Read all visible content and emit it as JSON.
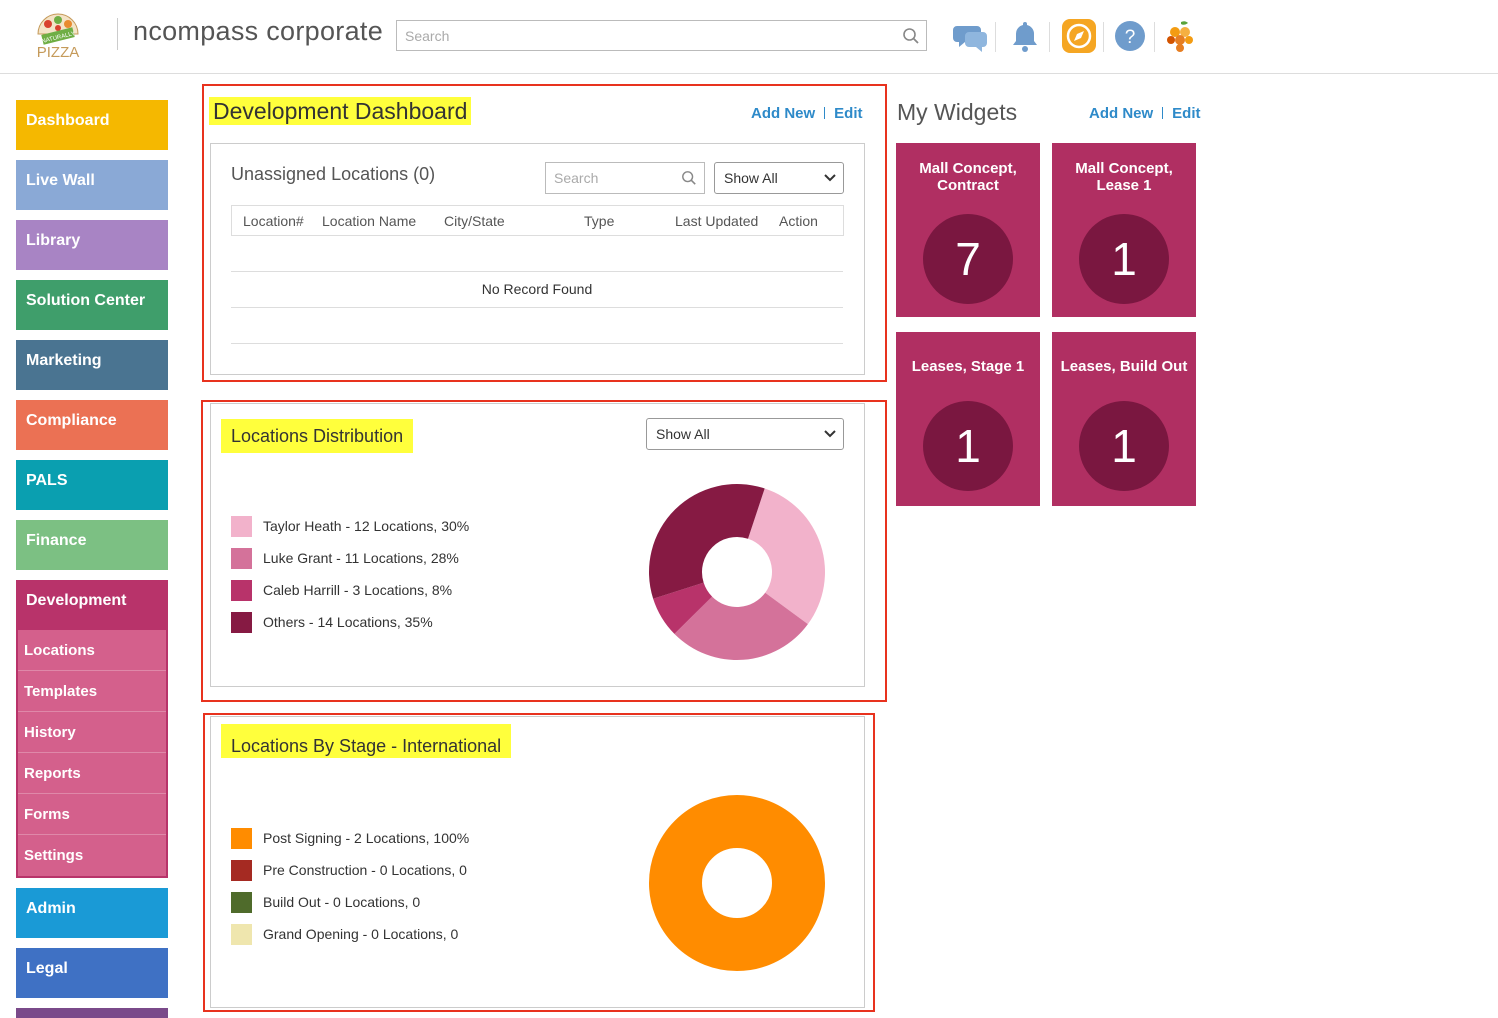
{
  "header": {
    "app_title": "ncompass corporate",
    "search_placeholder": "Search",
    "logo_text_top": "NATURALLY",
    "logo_text_bottom": "PIZZA",
    "icons": [
      "chat-icon",
      "bell-icon",
      "compass-icon",
      "help-icon",
      "fruit-icon"
    ],
    "help_glyph": "?"
  },
  "sidebar": {
    "items": [
      {
        "label": "Dashboard",
        "color": "#f5b800"
      },
      {
        "label": "Live Wall",
        "color": "#8aa9d6"
      },
      {
        "label": "Library",
        "color": "#a884c4"
      },
      {
        "label": "Solution Center",
        "color": "#3f9e6b"
      },
      {
        "label": "Marketing",
        "color": "#4a7491"
      },
      {
        "label": "Compliance",
        "color": "#eb7154"
      },
      {
        "label": "PALS",
        "color": "#0a9fb0"
      },
      {
        "label": "Finance",
        "color": "#7cc083"
      },
      {
        "label": "Development",
        "color": "#b8336a"
      },
      {
        "label": "Admin",
        "color": "#1a9ad6"
      },
      {
        "label": "Legal",
        "color": "#3f71c4"
      }
    ],
    "sub_items": [
      "Locations",
      "Templates",
      "History",
      "Reports",
      "Forms",
      "Settings"
    ]
  },
  "dev_dashboard": {
    "title": "Development Dashboard",
    "add_new": "Add New",
    "edit": "Edit",
    "unassigned_title": "Unassigned Locations (0)",
    "search_placeholder": "Search",
    "filter_value": "Show All",
    "columns": [
      "Location#",
      "Location Name",
      "City/State",
      "Type",
      "Last Updated",
      "Action"
    ],
    "empty_message": "No Record Found"
  },
  "distribution": {
    "title": "Locations Distribution",
    "filter_value": "Show All",
    "legend": [
      {
        "label": "Taylor Heath - 12 Locations, 30%",
        "color": "#f2b2cb"
      },
      {
        "label": "Luke Grant - 11 Locations, 28%",
        "color": "#d4729a"
      },
      {
        "label": "Caleb Harrill - 3 Locations, 8%",
        "color": "#b8336a"
      },
      {
        "label": "Others - 14 Locations, 35%",
        "color": "#861a43"
      }
    ]
  },
  "by_stage": {
    "title": "Locations By Stage - International",
    "legend": [
      {
        "label": "Post Signing - 2 Locations, 100%",
        "color": "#ff8c00"
      },
      {
        "label": "Pre Construction - 0 Locations, 0",
        "color": "#a52a22"
      },
      {
        "label": "Build Out - 0 Locations, 0",
        "color": "#4f6b2b"
      },
      {
        "label": "Grand Opening - 0 Locations, 0",
        "color": "#efe6ae"
      }
    ]
  },
  "widgets": {
    "title": "My Widgets",
    "add_new": "Add New",
    "edit": "Edit",
    "tiles": [
      {
        "label_line1": "Mall Concept,",
        "label_line2": "Contract",
        "count": "7"
      },
      {
        "label_line1": "Mall Concept,",
        "label_line2": "Lease 1",
        "count": "1"
      },
      {
        "label_line1": "Leases, Stage 1",
        "label_line2": "",
        "count": "1"
      },
      {
        "label_line1": "Leases, Build Out",
        "label_line2": "",
        "count": "1"
      }
    ]
  },
  "chart_data": [
    {
      "type": "pie",
      "title": "Locations Distribution",
      "categories": [
        "Taylor Heath",
        "Luke Grant",
        "Caleb Harrill",
        "Others"
      ],
      "values": [
        12,
        11,
        3,
        14
      ],
      "colors": [
        "#f2b2cb",
        "#d4729a",
        "#b8336a",
        "#861a43"
      ],
      "donut": true
    },
    {
      "type": "pie",
      "title": "Locations By Stage - International",
      "categories": [
        "Post Signing",
        "Pre Construction",
        "Build Out",
        "Grand Opening"
      ],
      "values": [
        2,
        0,
        0,
        0
      ],
      "colors": [
        "#ff8c00",
        "#a52a22",
        "#4f6b2b",
        "#efe6ae"
      ],
      "donut": true
    }
  ]
}
